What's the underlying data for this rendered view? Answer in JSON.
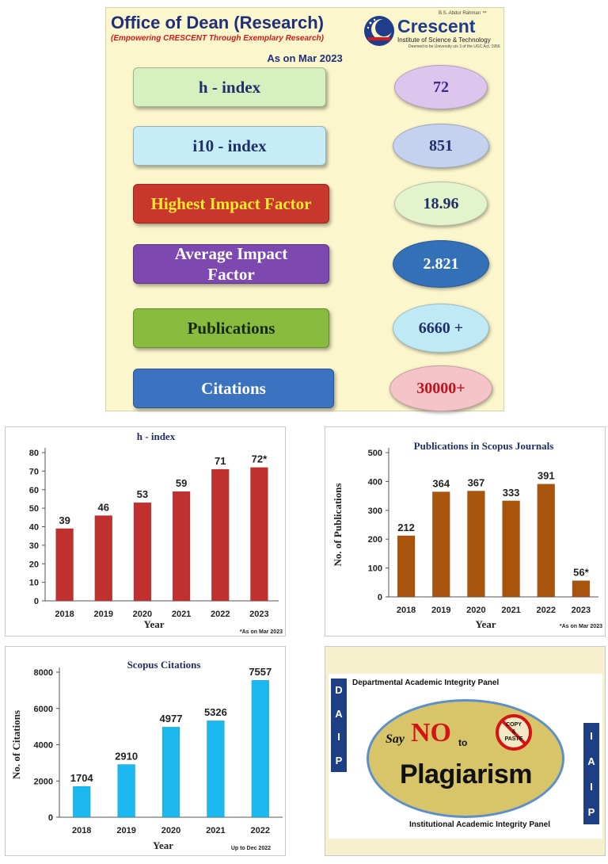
{
  "header": {
    "title": "Office of Dean (Research)",
    "subtitle": "(Empowering CRESCENT Through Exemplary Research)",
    "logo_small": "B.S. Abdur Rahman ™",
    "logo_name": "Crescent",
    "logo_sub": "Institute of Science & Technology",
    "logo_note": "Deemed to be University u/s 3 of the UGC Act, 1956",
    "as_on": "As on Mar 2023"
  },
  "metrics": [
    {
      "label": "h - index",
      "value": "72",
      "label_bg": "#d6f0c0",
      "label_color": "#1f2f6a",
      "value_bg": "#ddc6ee",
      "value_color": "#3a2a8a"
    },
    {
      "label": "i10 - index",
      "value": "851",
      "label_bg": "#c6ecf6",
      "label_color": "#1f2f6a",
      "value_bg": "#c4d2ef",
      "value_color": "#1f2f6a"
    },
    {
      "label": "Highest Impact Factor",
      "value": "18.96",
      "label_bg": "#c8372c",
      "label_color": "#ffe830",
      "value_bg": "#e3f3cc",
      "value_color": "#1f2f6a"
    },
    {
      "label": "Average Impact Factor",
      "value": "2.821",
      "label_bg": "#7d48b0",
      "label_color": "#ffffff",
      "value_bg": "#3470b8",
      "value_color": "#ffffff"
    },
    {
      "label": "Publications",
      "value": "6660 +",
      "label_bg": "#88bb3e",
      "label_color": "#152a10",
      "value_bg": "#bfeaf5",
      "value_color": "#1f2f6a"
    },
    {
      "label": "Citations",
      "value": "30000+",
      "label_bg": "#3b73c0",
      "label_color": "#ffffff",
      "value_bg": "#f4c4c8",
      "value_color": "#c0141e"
    }
  ],
  "chart_data": [
    {
      "type": "bar",
      "title": "h - index",
      "categories": [
        "2018",
        "2019",
        "2020",
        "2021",
        "2022",
        "2023"
      ],
      "values": [
        39,
        46,
        53,
        59,
        71,
        72
      ],
      "data_labels": [
        "39",
        "46",
        "53",
        "59",
        "71",
        "72*"
      ],
      "yticks": [
        0,
        10,
        20,
        30,
        40,
        50,
        60,
        70,
        80
      ],
      "ylim": [
        0,
        80
      ],
      "xlabel": "Year",
      "ylabel": "",
      "note": "*As on Mar 2023",
      "color": "#c0302e",
      "grid": false
    },
    {
      "type": "bar",
      "title": "Publications in Scopus Journals",
      "categories": [
        "2018",
        "2019",
        "2020",
        "2021",
        "2022",
        "2023"
      ],
      "values": [
        212,
        364,
        367,
        333,
        391,
        56
      ],
      "data_labels": [
        "212",
        "364",
        "367",
        "333",
        "391",
        "56*"
      ],
      "yticks": [
        0,
        100,
        200,
        300,
        400,
        500
      ],
      "ylim": [
        0,
        500
      ],
      "xlabel": "Year",
      "ylabel": "No. of Publications",
      "note": "*As on Mar 2023",
      "color": "#a9540d",
      "grid": false
    },
    {
      "type": "bar",
      "title": "Scopus Citations",
      "categories": [
        "2018",
        "2019",
        "2020",
        "2021",
        "2022"
      ],
      "values": [
        1704,
        2910,
        4977,
        5326,
        7557
      ],
      "data_labels": [
        "1704",
        "2910",
        "4977",
        "5326",
        "7557"
      ],
      "yticks": [
        0,
        2000,
        4000,
        6000,
        8000
      ],
      "ylim": [
        0,
        8000
      ],
      "xlabel": "Year",
      "ylabel": "No. of Citations",
      "note": "Up to Dec 2022",
      "color": "#1ab8ee",
      "grid": false
    }
  ],
  "integrity": {
    "dept_panel": "Departmental Academic Integrity Panel",
    "inst_panel": "Institutional Academic Integrity Panel",
    "daip_letters": [
      "D",
      "A",
      "I",
      "P"
    ],
    "iaip_letters": [
      "I",
      "A",
      "I",
      "P"
    ],
    "say": "Say",
    "no": "NO",
    "to": "to",
    "plagiarism": "Plagiarism",
    "copy": "COPY",
    "amp": "&",
    "paste": "PASTE"
  }
}
